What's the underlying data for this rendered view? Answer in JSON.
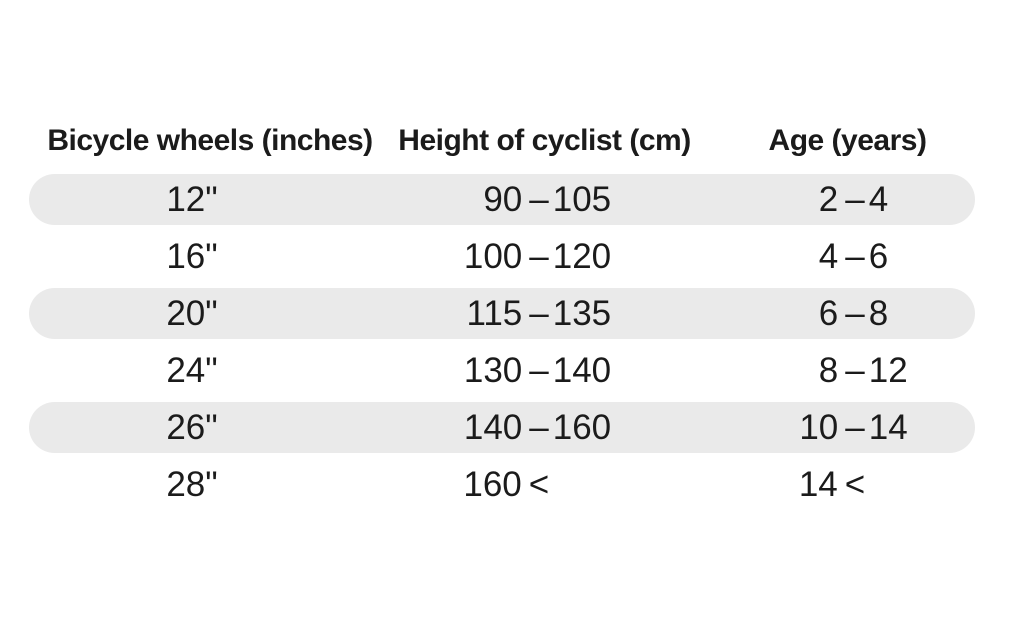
{
  "colors": {
    "background": "#ffffff",
    "stripe": "#eaeaea",
    "text": "#1b1b1b"
  },
  "table": {
    "columns": [
      {
        "label": "Bicycle wheels (inches)"
      },
      {
        "label": "Height of cyclist (cm)"
      },
      {
        "label": "Age (years)"
      }
    ],
    "rows": [
      {
        "wheels": "12\"",
        "height": {
          "lo": "90",
          "sep": "–",
          "hi": "105"
        },
        "age": {
          "lo": "2",
          "sep": "–",
          "hi": "4"
        }
      },
      {
        "wheels": "16\"",
        "height": {
          "lo": "100",
          "sep": "–",
          "hi": "120"
        },
        "age": {
          "lo": "4",
          "sep": "–",
          "hi": "6"
        }
      },
      {
        "wheels": "20\"",
        "height": {
          "lo": "115",
          "sep": "–",
          "hi": "135"
        },
        "age": {
          "lo": "6",
          "sep": "–",
          "hi": "8"
        }
      },
      {
        "wheels": "24\"",
        "height": {
          "lo": "130",
          "sep": "–",
          "hi": "140"
        },
        "age": {
          "lo": "8",
          "sep": "–",
          "hi": "12"
        }
      },
      {
        "wheels": "26\"",
        "height": {
          "lo": "140",
          "sep": "–",
          "hi": "160"
        },
        "age": {
          "lo": "10",
          "sep": "–",
          "hi": "14"
        }
      },
      {
        "wheels": "28\"",
        "height": {
          "lo": "160",
          "sep": "<",
          "hi": ""
        },
        "age": {
          "lo": "14",
          "sep": "<",
          "hi": ""
        }
      }
    ]
  },
  "chart_data": {
    "type": "table",
    "title": "",
    "columns": [
      "Bicycle wheels (inches)",
      "Height of cyclist (cm)",
      "Age (years)"
    ],
    "rows": [
      [
        "12\"",
        "90–105",
        "2–4"
      ],
      [
        "16\"",
        "100–120",
        "4–6"
      ],
      [
        "20\"",
        "115–135",
        "6–8"
      ],
      [
        "24\"",
        "130–140",
        "8–12"
      ],
      [
        "26\"",
        "140–160",
        "10–14"
      ],
      [
        "28\"",
        "160 <",
        "14 <"
      ]
    ],
    "layout_hints": {
      "striped_rows": [
        0,
        2,
        4
      ],
      "stripe_style": "pill",
      "header_bold": true,
      "grid": false
    }
  }
}
